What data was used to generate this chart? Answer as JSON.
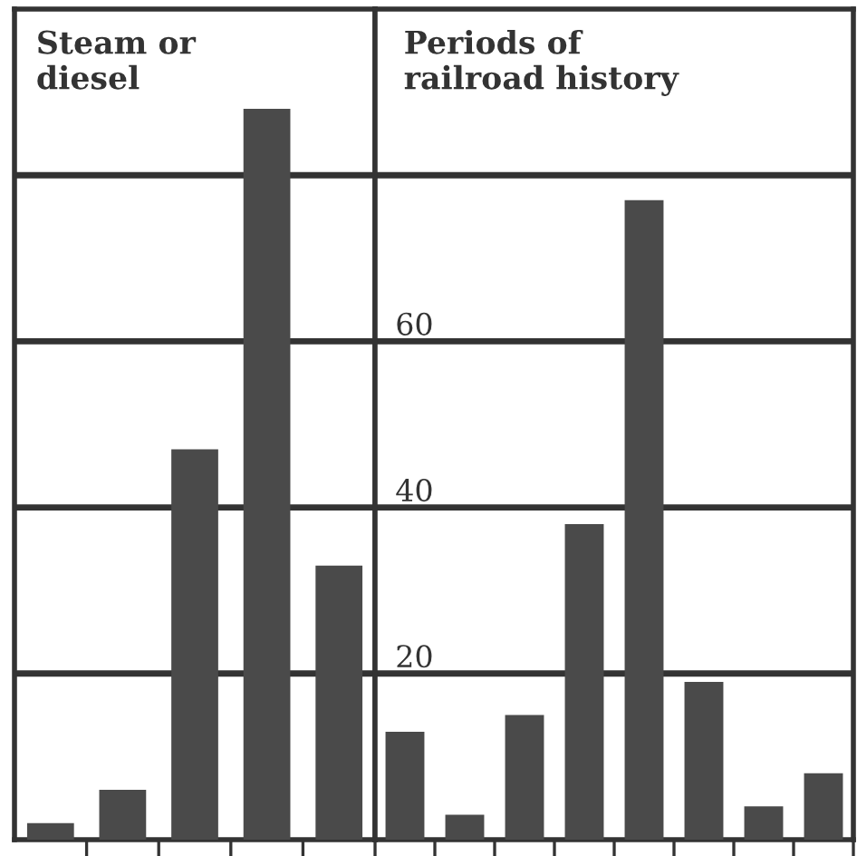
{
  "chart_data": [
    {
      "type": "bar",
      "title": "Steam or\ndiesel",
      "categories": [
        null,
        null,
        null,
        null,
        null
      ],
      "values": [
        2,
        6,
        47,
        88,
        33
      ],
      "color": "#4a4a4a",
      "ylim": [
        0,
        100
      ],
      "yticks": [
        20,
        40,
        60,
        80
      ],
      "grid": "y",
      "tick_labels": false
    },
    {
      "type": "bar",
      "title": "Periods of\nrailroad history",
      "categories": [
        null,
        null,
        null,
        null,
        null,
        null,
        null,
        null
      ],
      "values": [
        13,
        3,
        15,
        38,
        77,
        19,
        4,
        8
      ],
      "color": "#4a4a4a",
      "ylim": [
        0,
        100
      ],
      "yticks": [
        20,
        40,
        60,
        {
          "value": 80,
          "label": null
        }
      ],
      "grid": "y",
      "tick_labels": "y"
    }
  ]
}
